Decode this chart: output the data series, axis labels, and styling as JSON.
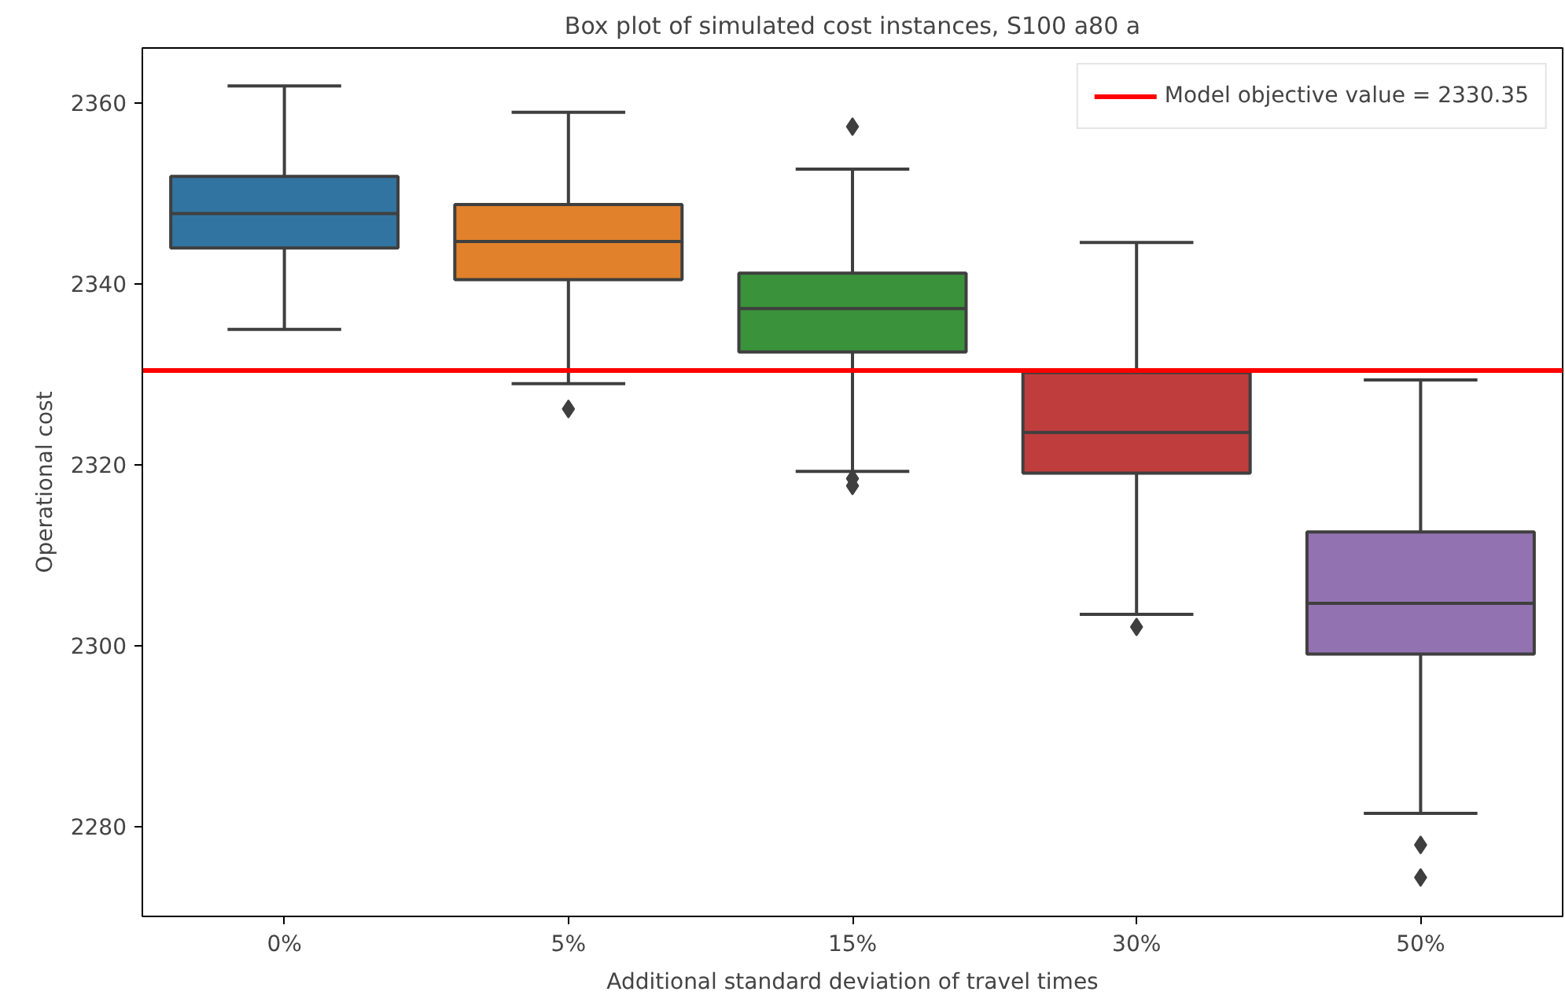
{
  "chart_data": {
    "type": "box",
    "title": "Box plot of simulated cost instances, S100 a80 a",
    "xlabel": "Additional standard deviation of travel times",
    "ylabel": "Operational cost",
    "categories": [
      "0%",
      "5%",
      "15%",
      "30%",
      "50%"
    ],
    "colors": [
      "#3274a1",
      "#e1812c",
      "#3a923a",
      "#c03d3e",
      "#9372b2"
    ],
    "boxes": [
      {
        "low": 2334.9,
        "q1": 2343.9,
        "median": 2347.7,
        "q3": 2351.8,
        "high": 2361.8
      },
      {
        "low": 2328.9,
        "q1": 2340.4,
        "median": 2344.6,
        "q3": 2348.7,
        "high": 2358.9,
        "outliers": [
          2326.1
        ]
      },
      {
        "low": 2319.2,
        "q1": 2332.4,
        "median": 2337.2,
        "q3": 2341.1,
        "high": 2352.6,
        "outliers": [
          2357.3,
          2318.4,
          2317.6
        ]
      },
      {
        "low": 2303.4,
        "q1": 2319.0,
        "median": 2323.5,
        "q3": 2330.1,
        "high": 2344.5,
        "outliers": [
          2302.0
        ]
      },
      {
        "low": 2281.4,
        "q1": 2299.0,
        "median": 2304.6,
        "q3": 2312.5,
        "high": 2329.3,
        "outliers": [
          2277.9,
          2274.3
        ]
      }
    ],
    "ylim": [
      2270,
      2366
    ],
    "yticks": [
      2280,
      2300,
      2320,
      2340,
      2360
    ],
    "ref_lines": [
      {
        "axis": "y",
        "value": 2330.35,
        "label": "Model objective value = 2330.35",
        "color": "#ff0000"
      }
    ],
    "marker": "diamond",
    "grid": false,
    "legend": "top right"
  }
}
